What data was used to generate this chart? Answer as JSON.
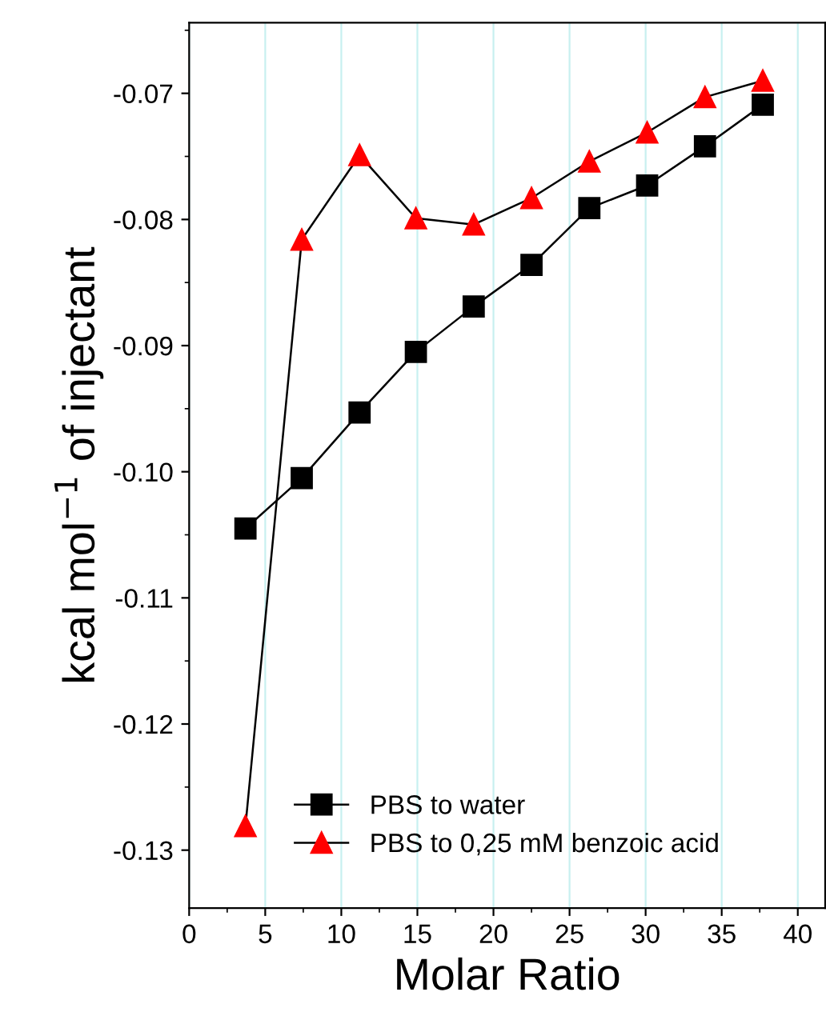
{
  "chart_data": {
    "type": "line",
    "xlabel": "Molar Ratio",
    "ylabel": "kcal mol$^{−1}$ of injectant",
    "x": [
      3.7,
      7.4,
      11.2,
      14.9,
      18.7,
      22.5,
      26.3,
      30.1,
      33.9,
      37.7
    ],
    "series": [
      {
        "name": "PBS to water",
        "color": "#000000",
        "marker": "square",
        "values": [
          -0.1045,
          -0.1005,
          -0.0953,
          -0.0905,
          -0.0869,
          -0.0836,
          -0.0791,
          -0.0773,
          -0.0742,
          -0.0709
        ]
      },
      {
        "name": "PBS to 0,25 mM benzoic acid",
        "color": "#ff0000",
        "marker": "triangle",
        "values": [
          -0.1281,
          -0.0816,
          -0.0749,
          -0.0799,
          -0.0804,
          -0.0783,
          -0.0754,
          -0.0731,
          -0.0703,
          -0.069
        ]
      }
    ],
    "xlim": [
      0,
      41.8
    ],
    "xticks": [
      0,
      5,
      10,
      15,
      20,
      25,
      30,
      35,
      40
    ],
    "ylim": [
      -0.1346,
      -0.0644
    ],
    "yticks": [
      {
        "value": -0.13,
        "label": "-0.13"
      },
      {
        "value": -0.12,
        "label": "-0.12"
      },
      {
        "value": -0.11,
        "label": "-0.11"
      },
      {
        "value": -0.1,
        "label": "-0.10"
      },
      {
        "value": -0.09,
        "label": "-0.09"
      },
      {
        "value": -0.08,
        "label": "-0.08"
      },
      {
        "value": -0.07,
        "label": "-0.07"
      }
    ],
    "grid": "x",
    "legend": "bottom",
    "line_style": "solid"
  }
}
